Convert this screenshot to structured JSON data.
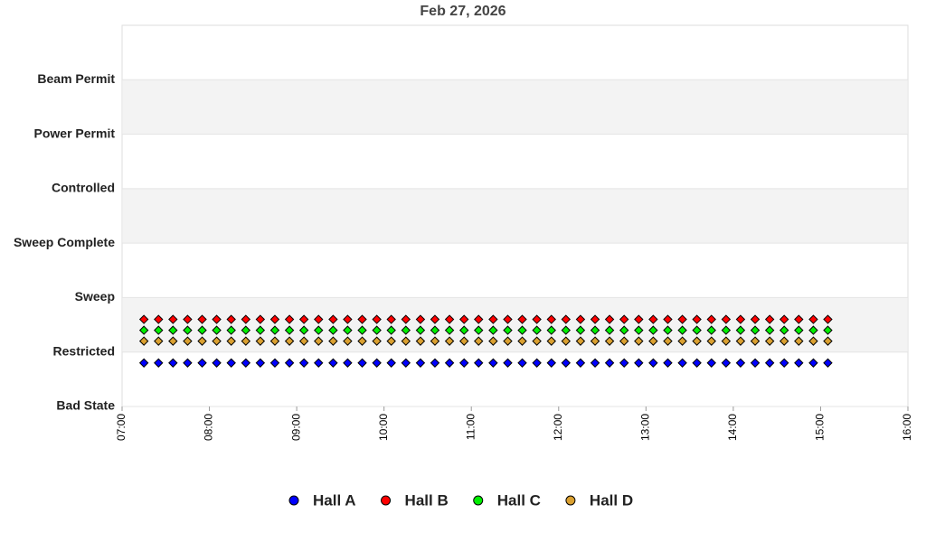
{
  "chart_data": {
    "type": "scatter",
    "title": "Feb 27, 2026",
    "x": [
      7.25,
      7.417,
      7.583,
      7.75,
      7.917,
      8.083,
      8.25,
      8.417,
      8.583,
      8.75,
      8.917,
      9.083,
      9.25,
      9.417,
      9.583,
      9.75,
      9.917,
      10.083,
      10.25,
      10.417,
      10.583,
      10.75,
      10.917,
      11.083,
      11.25,
      11.417,
      11.583,
      11.75,
      11.917,
      12.083,
      12.25,
      12.417,
      12.583,
      12.75,
      12.917,
      13.083,
      13.25,
      13.417,
      13.583,
      13.75,
      13.917,
      14.083,
      14.25,
      14.417,
      14.583,
      14.75,
      14.917,
      15.083
    ],
    "series": [
      {
        "name": "Hall A",
        "color": "#0000ff",
        "values": [
          0.8,
          0.8,
          0.8,
          0.8,
          0.8,
          0.8,
          0.8,
          0.8,
          0.8,
          0.8,
          0.8,
          0.8,
          0.8,
          0.8,
          0.8,
          0.8,
          0.8,
          0.8,
          0.8,
          0.8,
          0.8,
          0.8,
          0.8,
          0.8,
          0.8,
          0.8,
          0.8,
          0.8,
          0.8,
          0.8,
          0.8,
          0.8,
          0.8,
          0.8,
          0.8,
          0.8,
          0.8,
          0.8,
          0.8,
          0.8,
          0.8,
          0.8,
          0.8,
          0.8,
          0.8,
          0.8,
          0.8,
          0.8
        ]
      },
      {
        "name": "Hall B",
        "color": "#ff0000",
        "values": [
          1.6,
          1.6,
          1.6,
          1.6,
          1.6,
          1.6,
          1.6,
          1.6,
          1.6,
          1.6,
          1.6,
          1.6,
          1.6,
          1.6,
          1.6,
          1.6,
          1.6,
          1.6,
          1.6,
          1.6,
          1.6,
          1.6,
          1.6,
          1.6,
          1.6,
          1.6,
          1.6,
          1.6,
          1.6,
          1.6,
          1.6,
          1.6,
          1.6,
          1.6,
          1.6,
          1.6,
          1.6,
          1.6,
          1.6,
          1.6,
          1.6,
          1.6,
          1.6,
          1.6,
          1.6,
          1.6,
          1.6,
          1.6
        ]
      },
      {
        "name": "Hall C",
        "color": "#00ee00",
        "values": [
          1.4,
          1.4,
          1.4,
          1.4,
          1.4,
          1.4,
          1.4,
          1.4,
          1.4,
          1.4,
          1.4,
          1.4,
          1.4,
          1.4,
          1.4,
          1.4,
          1.4,
          1.4,
          1.4,
          1.4,
          1.4,
          1.4,
          1.4,
          1.4,
          1.4,
          1.4,
          1.4,
          1.4,
          1.4,
          1.4,
          1.4,
          1.4,
          1.4,
          1.4,
          1.4,
          1.4,
          1.4,
          1.4,
          1.4,
          1.4,
          1.4,
          1.4,
          1.4,
          1.4,
          1.4,
          1.4,
          1.4,
          1.4
        ]
      },
      {
        "name": "Hall D",
        "color": "#daa030",
        "values": [
          1.2,
          1.2,
          1.2,
          1.2,
          1.2,
          1.2,
          1.2,
          1.2,
          1.2,
          1.2,
          1.2,
          1.2,
          1.2,
          1.2,
          1.2,
          1.2,
          1.2,
          1.2,
          1.2,
          1.2,
          1.2,
          1.2,
          1.2,
          1.2,
          1.2,
          1.2,
          1.2,
          1.2,
          1.2,
          1.2,
          1.2,
          1.2,
          1.2,
          1.2,
          1.2,
          1.2,
          1.2,
          1.2,
          1.2,
          1.2,
          1.2,
          1.2,
          1.2,
          1.2,
          1.2,
          1.2,
          1.2,
          1.2
        ]
      }
    ],
    "xlim": [
      7,
      16
    ],
    "xticks": [
      {
        "value": 7,
        "label": "07:00"
      },
      {
        "value": 8,
        "label": "08:00"
      },
      {
        "value": 9,
        "label": "09:00"
      },
      {
        "value": 10,
        "label": "10:00"
      },
      {
        "value": 11,
        "label": "11:00"
      },
      {
        "value": 12,
        "label": "12:00"
      },
      {
        "value": 13,
        "label": "13:00"
      },
      {
        "value": 14,
        "label": "14:00"
      },
      {
        "value": 15,
        "label": "15:00"
      },
      {
        "value": 16,
        "label": "16:00"
      }
    ],
    "ylim": [
      0,
      7
    ],
    "yticks": [
      {
        "value": 0,
        "label": "Bad State"
      },
      {
        "value": 1,
        "label": "Restricted"
      },
      {
        "value": 2,
        "label": "Sweep"
      },
      {
        "value": 3,
        "label": "Sweep Complete"
      },
      {
        "value": 4,
        "label": "Controlled"
      },
      {
        "value": 5,
        "label": "Power Permit"
      },
      {
        "value": 6,
        "label": "Beam Permit"
      }
    ],
    "grid": true,
    "legend": "bottom"
  }
}
